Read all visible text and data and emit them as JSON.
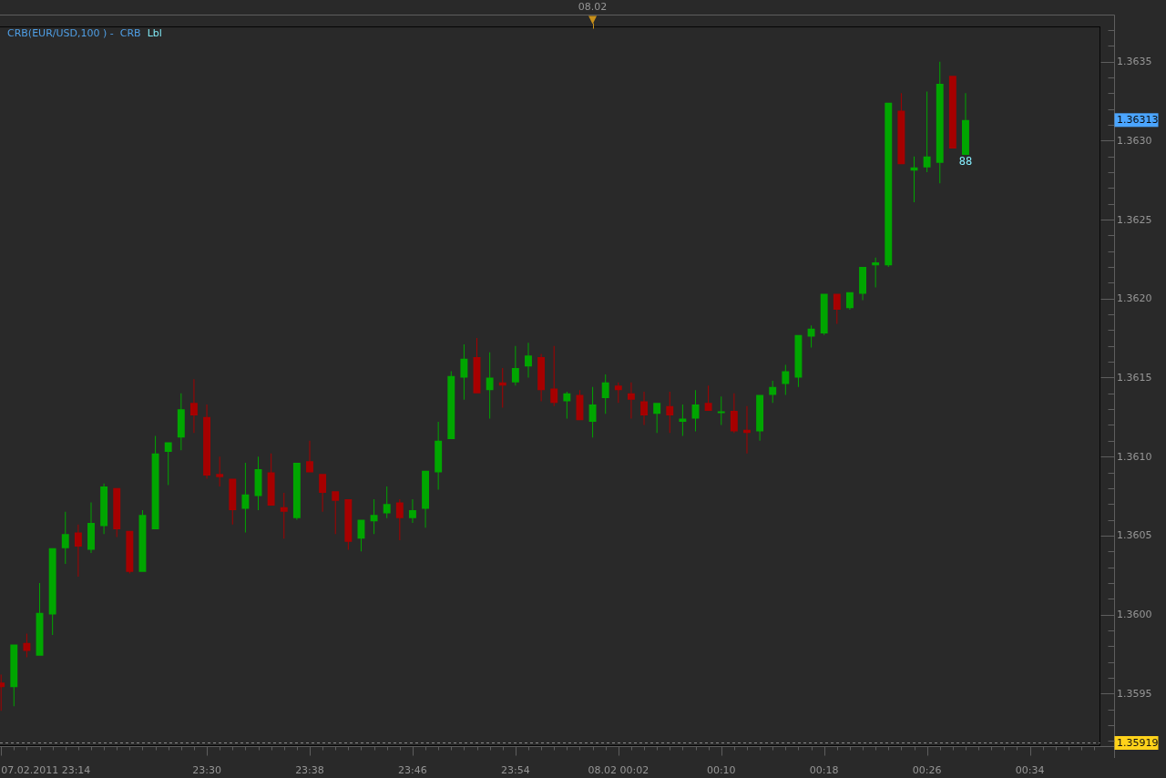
{
  "chart_data": {
    "type": "candlestick",
    "title": "CRB(EUR/USD,100 ) -  CRB",
    "subtitle": "Lbl",
    "x": [
      "2011-02-07T23:14",
      "2011-02-07T23:15",
      "2011-02-07T23:16",
      "2011-02-07T23:17",
      "2011-02-07T23:18",
      "2011-02-07T23:19",
      "2011-02-07T23:20",
      "2011-02-07T23:21",
      "2011-02-07T23:22",
      "2011-02-07T23:23",
      "2011-02-07T23:24",
      "2011-02-07T23:25",
      "2011-02-07T23:26",
      "2011-02-07T23:27",
      "2011-02-07T23:28",
      "2011-02-07T23:29",
      "2011-02-07T23:30",
      "2011-02-07T23:31",
      "2011-02-07T23:32",
      "2011-02-07T23:33",
      "2011-02-07T23:34",
      "2011-02-07T23:35",
      "2011-02-07T23:36",
      "2011-02-07T23:37",
      "2011-02-07T23:38",
      "2011-02-07T23:39",
      "2011-02-07T23:40",
      "2011-02-07T23:41",
      "2011-02-07T23:42",
      "2011-02-07T23:43",
      "2011-02-07T23:44",
      "2011-02-07T23:45",
      "2011-02-07T23:46",
      "2011-02-07T23:47",
      "2011-02-07T23:48",
      "2011-02-07T23:49",
      "2011-02-07T23:50",
      "2011-02-07T23:51",
      "2011-02-07T23:52",
      "2011-02-07T23:53",
      "2011-02-07T23:54",
      "2011-02-07T23:55",
      "2011-02-07T23:56",
      "2011-02-07T23:57",
      "2011-02-07T23:58",
      "2011-02-07T23:59",
      "2011-02-08T00:00",
      "2011-02-08T00:01",
      "2011-02-08T00:02",
      "2011-02-08T00:03",
      "2011-02-08T00:04",
      "2011-02-08T00:05",
      "2011-02-08T00:06",
      "2011-02-08T00:07",
      "2011-02-08T00:08",
      "2011-02-08T00:09",
      "2011-02-08T00:10",
      "2011-02-08T00:11",
      "2011-02-08T00:12",
      "2011-02-08T00:13",
      "2011-02-08T00:14",
      "2011-02-08T00:15",
      "2011-02-08T00:16",
      "2011-02-08T00:17",
      "2011-02-08T00:18",
      "2011-02-08T00:19",
      "2011-02-08T00:20",
      "2011-02-08T00:21",
      "2011-02-08T00:22",
      "2011-02-08T00:23",
      "2011-02-08T00:24",
      "2011-02-08T00:25",
      "2011-02-08T00:26",
      "2011-02-08T00:27",
      "2011-02-08T00:28",
      "2011-02-08T00:29"
    ],
    "ohlc": [
      [
        1.35957,
        1.35962,
        1.35939,
        1.35954
      ],
      [
        1.35954,
        1.35981,
        1.35942,
        1.35981
      ],
      [
        1.35982,
        1.35988,
        1.35973,
        1.35977
      ],
      [
        1.35974,
        1.3602,
        1.35974,
        1.36001
      ],
      [
        1.36,
        1.36042,
        1.35987,
        1.36042
      ],
      [
        1.36042,
        1.36065,
        1.36032,
        1.36051
      ],
      [
        1.36052,
        1.36057,
        1.36024,
        1.36043
      ],
      [
        1.36041,
        1.36071,
        1.36039,
        1.36058
      ],
      [
        1.36056,
        1.36083,
        1.36051,
        1.36081
      ],
      [
        1.3608,
        1.3608,
        1.36049,
        1.36054
      ],
      [
        1.36053,
        1.36053,
        1.36026,
        1.36027
      ],
      [
        1.36027,
        1.36066,
        1.36027,
        1.36063
      ],
      [
        1.36054,
        1.36113,
        1.36054,
        1.36102
      ],
      [
        1.36103,
        1.36109,
        1.36082,
        1.36109
      ],
      [
        1.36112,
        1.3614,
        1.36104,
        1.3613
      ],
      [
        1.36134,
        1.36149,
        1.36115,
        1.36126
      ],
      [
        1.36125,
        1.36133,
        1.36086,
        1.36088
      ],
      [
        1.36089,
        1.361,
        1.36081,
        1.36087
      ],
      [
        1.36086,
        1.36086,
        1.36057,
        1.36066
      ],
      [
        1.36067,
        1.36096,
        1.36052,
        1.36076
      ],
      [
        1.36075,
        1.361,
        1.36066,
        1.36092
      ],
      [
        1.3609,
        1.36102,
        1.36069,
        1.36069
      ],
      [
        1.36068,
        1.36077,
        1.36048,
        1.36065
      ],
      [
        1.36061,
        1.36096,
        1.3606,
        1.36096
      ],
      [
        1.36097,
        1.3611,
        1.3609,
        1.3609
      ],
      [
        1.36089,
        1.36089,
        1.36065,
        1.36077
      ],
      [
        1.36078,
        1.36078,
        1.36051,
        1.36072
      ],
      [
        1.36073,
        1.36073,
        1.36041,
        1.36046
      ],
      [
        1.36048,
        1.3606,
        1.3604,
        1.3606
      ],
      [
        1.36059,
        1.36073,
        1.36051,
        1.36063
      ],
      [
        1.36064,
        1.36081,
        1.36061,
        1.3607
      ],
      [
        1.36071,
        1.36073,
        1.36047,
        1.36061
      ],
      [
        1.36061,
        1.36073,
        1.36058,
        1.36066
      ],
      [
        1.36067,
        1.36091,
        1.36055,
        1.36091
      ],
      [
        1.3609,
        1.36122,
        1.36079,
        1.3611
      ],
      [
        1.36111,
        1.36154,
        1.36111,
        1.36151
      ],
      [
        1.3615,
        1.36171,
        1.36136,
        1.36162
      ],
      [
        1.36163,
        1.36175,
        1.3614,
        1.3614
      ],
      [
        1.36142,
        1.36166,
        1.36124,
        1.3615
      ],
      [
        1.36147,
        1.36156,
        1.36131,
        1.36145
      ],
      [
        1.36147,
        1.3617,
        1.36145,
        1.36156
      ],
      [
        1.36157,
        1.36172,
        1.3615,
        1.36164
      ],
      [
        1.36163,
        1.36165,
        1.36135,
        1.36142
      ],
      [
        1.36143,
        1.3617,
        1.36132,
        1.36134
      ],
      [
        1.36135,
        1.36141,
        1.36124,
        1.3614
      ],
      [
        1.36139,
        1.36142,
        1.36123,
        1.36123
      ],
      [
        1.36122,
        1.36144,
        1.36112,
        1.36133
      ],
      [
        1.36137,
        1.36152,
        1.36127,
        1.36147
      ],
      [
        1.36145,
        1.36147,
        1.36134,
        1.36142
      ],
      [
        1.3614,
        1.36147,
        1.36124,
        1.36136
      ],
      [
        1.36135,
        1.36141,
        1.3612,
        1.36126
      ],
      [
        1.36127,
        1.36134,
        1.36115,
        1.36134
      ],
      [
        1.36132,
        1.36141,
        1.36115,
        1.36126
      ],
      [
        1.36122,
        1.36133,
        1.36113,
        1.36124
      ],
      [
        1.36124,
        1.36142,
        1.36116,
        1.36133
      ],
      [
        1.36134,
        1.36145,
        1.36129,
        1.36129
      ],
      [
        1.36128,
        1.36138,
        1.3612,
        1.36128
      ],
      [
        1.36129,
        1.3614,
        1.36115,
        1.36116
      ],
      [
        1.36117,
        1.36132,
        1.36102,
        1.36115
      ],
      [
        1.36116,
        1.36139,
        1.3611,
        1.36139
      ],
      [
        1.36139,
        1.36148,
        1.36134,
        1.36144
      ],
      [
        1.36146,
        1.36158,
        1.36139,
        1.36154
      ],
      [
        1.3615,
        1.36177,
        1.36144,
        1.36177
      ],
      [
        1.36176,
        1.36183,
        1.36169,
        1.36181
      ],
      [
        1.36178,
        1.36203,
        1.36177,
        1.36203
      ],
      [
        1.36203,
        1.36203,
        1.36184,
        1.36193
      ],
      [
        1.36194,
        1.36204,
        1.36193,
        1.36204
      ],
      [
        1.36203,
        1.3622,
        1.36199,
        1.3622
      ],
      [
        1.36221,
        1.36226,
        1.36207,
        1.36223
      ],
      [
        1.36221,
        1.36324,
        1.3622,
        1.36324
      ],
      [
        1.36319,
        1.3633,
        1.36285,
        1.36285
      ],
      [
        1.36281,
        1.3629,
        1.36261,
        1.36283
      ],
      [
        1.36283,
        1.36331,
        1.3628,
        1.3629
      ],
      [
        1.36286,
        1.3635,
        1.36273,
        1.36336
      ],
      [
        1.36341,
        1.36341,
        1.36295,
        1.36295
      ],
      [
        1.36291,
        1.3633,
        1.36291,
        1.36313
      ]
    ],
    "colors": [
      "#a60000",
      "#00a600",
      "#a60000",
      "#00a600",
      "#00a600",
      "#00a600",
      "#a60000",
      "#00a600",
      "#00a600",
      "#a60000",
      "#a60000",
      "#00a600",
      "#00a600",
      "#00a600",
      "#00a600",
      "#a60000",
      "#a60000",
      "#a60000",
      "#a60000",
      "#00a600",
      "#00a600",
      "#a60000",
      "#a60000",
      "#00a600",
      "#a60000",
      "#a60000",
      "#a60000",
      "#a60000",
      "#00a600",
      "#00a600",
      "#00a600",
      "#a60000",
      "#00a600",
      "#00a600",
      "#00a600",
      "#00a600",
      "#00a600",
      "#a60000",
      "#00a600",
      "#a60000",
      "#00a600",
      "#00a600",
      "#a60000",
      "#a60000",
      "#00a600",
      "#a60000",
      "#00a600",
      "#00a600",
      "#a60000",
      "#a60000",
      "#a60000",
      "#00a600",
      "#a60000",
      "#00a600",
      "#00a600",
      "#a60000",
      "#00a600",
      "#a60000",
      "#a60000",
      "#00a600",
      "#00a600",
      "#00a600",
      "#00a600",
      "#00a600",
      "#00a600",
      "#a60000",
      "#00a600",
      "#00a600",
      "#00a600",
      "#00a600",
      "#a60000",
      "#00a600",
      "#00a600",
      "#00a600",
      "#a60000",
      "#00a600"
    ],
    "xlim": [
      "2011-02-07T23:13:55",
      "2011-02-08T00:39:27"
    ],
    "xticks": [
      {
        "value": "2011-02-07T23:14",
        "label": "07.02.2011 23:14"
      },
      {
        "value": "2011-02-07T23:15",
        "label": null
      },
      {
        "value": "2011-02-07T23:16",
        "label": null
      },
      {
        "value": "2011-02-07T23:17",
        "label": null
      },
      {
        "value": "2011-02-07T23:18",
        "label": null
      },
      {
        "value": "2011-02-07T23:19",
        "label": null
      },
      {
        "value": "2011-02-07T23:20",
        "label": null
      },
      {
        "value": "2011-02-07T23:21",
        "label": null
      },
      {
        "value": "2011-02-07T23:22",
        "label": null
      },
      {
        "value": "2011-02-07T23:23",
        "label": null
      },
      {
        "value": "2011-02-07T23:24",
        "label": null
      },
      {
        "value": "2011-02-07T23:25",
        "label": null
      },
      {
        "value": "2011-02-07T23:26",
        "label": null
      },
      {
        "value": "2011-02-07T23:27",
        "label": null
      },
      {
        "value": "2011-02-07T23:28",
        "label": null
      },
      {
        "value": "2011-02-07T23:29",
        "label": null
      },
      {
        "value": "2011-02-07T23:30",
        "label": "23:30"
      },
      {
        "value": "2011-02-07T23:31",
        "label": null
      },
      {
        "value": "2011-02-07T23:32",
        "label": null
      },
      {
        "value": "2011-02-07T23:33",
        "label": null
      },
      {
        "value": "2011-02-07T23:34",
        "label": null
      },
      {
        "value": "2011-02-07T23:35",
        "label": null
      },
      {
        "value": "2011-02-07T23:36",
        "label": null
      },
      {
        "value": "2011-02-07T23:37",
        "label": null
      },
      {
        "value": "2011-02-07T23:38",
        "label": "23:38"
      },
      {
        "value": "2011-02-07T23:39",
        "label": null
      },
      {
        "value": "2011-02-07T23:40",
        "label": null
      },
      {
        "value": "2011-02-07T23:41",
        "label": null
      },
      {
        "value": "2011-02-07T23:42",
        "label": null
      },
      {
        "value": "2011-02-07T23:43",
        "label": null
      },
      {
        "value": "2011-02-07T23:44",
        "label": null
      },
      {
        "value": "2011-02-07T23:45",
        "label": null
      },
      {
        "value": "2011-02-07T23:46",
        "label": "23:46"
      },
      {
        "value": "2011-02-07T23:47",
        "label": null
      },
      {
        "value": "2011-02-07T23:48",
        "label": null
      },
      {
        "value": "2011-02-07T23:49",
        "label": null
      },
      {
        "value": "2011-02-07T23:50",
        "label": null
      },
      {
        "value": "2011-02-07T23:51",
        "label": null
      },
      {
        "value": "2011-02-07T23:52",
        "label": null
      },
      {
        "value": "2011-02-07T23:53",
        "label": null
      },
      {
        "value": "2011-02-07T23:54",
        "label": "23:54"
      },
      {
        "value": "2011-02-07T23:55",
        "label": null
      },
      {
        "value": "2011-02-07T23:56",
        "label": null
      },
      {
        "value": "2011-02-07T23:57",
        "label": null
      },
      {
        "value": "2011-02-07T23:58",
        "label": null
      },
      {
        "value": "2011-02-07T23:59",
        "label": null
      },
      {
        "value": "2011-02-08T00:00",
        "label": null
      },
      {
        "value": "2011-02-08T00:01",
        "label": null
      },
      {
        "value": "2011-02-08T00:02",
        "label": "08.02 00:02"
      },
      {
        "value": "2011-02-08T00:03",
        "label": null
      },
      {
        "value": "2011-02-08T00:04",
        "label": null
      },
      {
        "value": "2011-02-08T00:05",
        "label": null
      },
      {
        "value": "2011-02-08T00:06",
        "label": null
      },
      {
        "value": "2011-02-08T00:07",
        "label": null
      },
      {
        "value": "2011-02-08T00:08",
        "label": null
      },
      {
        "value": "2011-02-08T00:09",
        "label": null
      },
      {
        "value": "2011-02-08T00:10",
        "label": "00:10"
      },
      {
        "value": "2011-02-08T00:11",
        "label": null
      },
      {
        "value": "2011-02-08T00:12",
        "label": null
      },
      {
        "value": "2011-02-08T00:13",
        "label": null
      },
      {
        "value": "2011-02-08T00:14",
        "label": null
      },
      {
        "value": "2011-02-08T00:15",
        "label": null
      },
      {
        "value": "2011-02-08T00:16",
        "label": null
      },
      {
        "value": "2011-02-08T00:17",
        "label": null
      },
      {
        "value": "2011-02-08T00:18",
        "label": "00:18"
      },
      {
        "value": "2011-02-08T00:19",
        "label": null
      },
      {
        "value": "2011-02-08T00:20",
        "label": null
      },
      {
        "value": "2011-02-08T00:21",
        "label": null
      },
      {
        "value": "2011-02-08T00:22",
        "label": null
      },
      {
        "value": "2011-02-08T00:23",
        "label": null
      },
      {
        "value": "2011-02-08T00:24",
        "label": null
      },
      {
        "value": "2011-02-08T00:25",
        "label": null
      },
      {
        "value": "2011-02-08T00:26",
        "label": "00:26"
      },
      {
        "value": "2011-02-08T00:27",
        "label": null
      },
      {
        "value": "2011-02-08T00:28",
        "label": null
      },
      {
        "value": "2011-02-08T00:29",
        "label": null
      },
      {
        "value": "2011-02-08T00:30",
        "label": null
      },
      {
        "value": "2011-02-08T00:31",
        "label": null
      },
      {
        "value": "2011-02-08T00:32",
        "label": null
      },
      {
        "value": "2011-02-08T00:33",
        "label": null
      },
      {
        "value": "2011-02-08T00:34",
        "label": "00:34"
      },
      {
        "value": "2011-02-08T00:35",
        "label": null
      },
      {
        "value": "2011-02-08T00:36",
        "label": null
      },
      {
        "value": "2011-02-08T00:37",
        "label": null
      },
      {
        "value": "2011-02-08T00:38",
        "label": null
      },
      {
        "value": "2011-02-08T00:39",
        "label": null
      }
    ],
    "ylim": [
      1.35917,
      1.36372
    ],
    "yticks": [
      {
        "value": 1.3592,
        "label": null
      },
      {
        "value": 1.3593,
        "label": null
      },
      {
        "value": 1.3594,
        "label": null
      },
      1.3595,
      {
        "value": 1.3596,
        "label": null
      },
      {
        "value": 1.3597,
        "label": null
      },
      {
        "value": 1.3598,
        "label": null
      },
      {
        "value": 1.3599,
        "label": null
      },
      {
        "value": 1.36,
        "label": "1.3600"
      },
      {
        "value": 1.3601,
        "label": null
      },
      {
        "value": 1.3602,
        "label": null
      },
      {
        "value": 1.3603,
        "label": null
      },
      {
        "value": 1.3604,
        "label": null
      },
      1.3605,
      {
        "value": 1.3606,
        "label": null
      },
      {
        "value": 1.3607,
        "label": null
      },
      {
        "value": 1.3608,
        "label": null
      },
      {
        "value": 1.3609,
        "label": null
      },
      {
        "value": 1.361,
        "label": "1.3610"
      },
      {
        "value": 1.3611,
        "label": null
      },
      {
        "value": 1.3612,
        "label": null
      },
      {
        "value": 1.3613,
        "label": null
      },
      {
        "value": 1.3614,
        "label": null
      },
      1.3615,
      {
        "value": 1.3616,
        "label": null
      },
      {
        "value": 1.3617,
        "label": null
      },
      {
        "value": 1.3618,
        "label": null
      },
      {
        "value": 1.3619,
        "label": null
      },
      {
        "value": 1.362,
        "label": "1.3620"
      },
      {
        "value": 1.3621,
        "label": null
      },
      {
        "value": 1.3622,
        "label": null
      },
      {
        "value": 1.3623,
        "label": null
      },
      {
        "value": 1.3624,
        "label": null
      },
      1.3625,
      {
        "value": 1.3626,
        "label": null
      },
      {
        "value": 1.3627,
        "label": null
      },
      {
        "value": 1.3628,
        "label": null
      },
      {
        "value": 1.3629,
        "label": null
      },
      {
        "value": 1.363,
        "label": "1.3630"
      },
      {
        "value": 1.3631,
        "label": null
      },
      1.36313,
      {
        "value": 1.3632,
        "label": null
      },
      {
        "value": 1.3633,
        "label": null
      },
      {
        "value": 1.3634,
        "label": null
      },
      1.3635,
      {
        "value": 1.3636,
        "label": null
      },
      {
        "value": 1.3637,
        "label": null
      }
    ],
    "ref_lines": [
      {
        "axis": "y",
        "value": 1.35919,
        "label": "1.35919",
        "line_style": "dashed"
      }
    ],
    "annotations": [
      "08.02",
      {
        "text": "88",
        "x": "2011-02-08T00:29",
        "y": 1.36291
      }
    ]
  }
}
